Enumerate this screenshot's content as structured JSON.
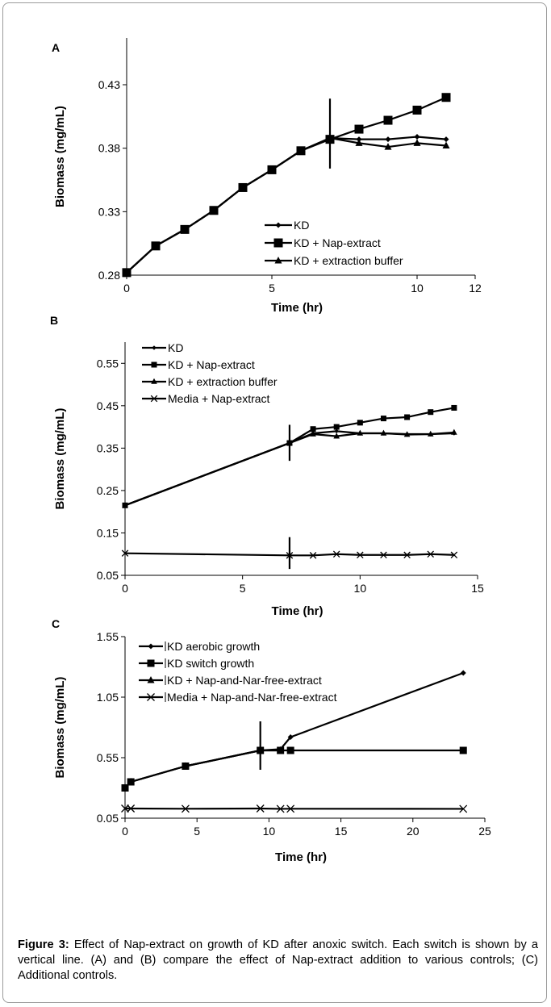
{
  "caption": {
    "label": "Figure 3:",
    "text": " Effect of Nap-extract on growth of KD after anoxic switch. Each switch is shown by a vertical line. (A) and (B) compare the effect of Nap-extract addition to various controls; (C) Additional controls."
  },
  "chart_data": [
    {
      "panel": "A",
      "type": "line",
      "xlabel": "Time (hr)",
      "ylabel": "Biomass (mg/mL)",
      "xlim": [
        0,
        12
      ],
      "ylim": [
        0.28,
        0.43
      ],
      "xticks": [
        0,
        5,
        10,
        12
      ],
      "yticks": [
        0.28,
        0.33,
        0.38,
        0.43
      ],
      "xtick_labels": [
        "0",
        "5",
        "10",
        "12"
      ],
      "ytick_labels": [
        "0.28",
        "0.33",
        "0.38",
        "0.43"
      ],
      "switch_x": 7,
      "switch_range": [
        0.364,
        0.419
      ],
      "legend_position": "bottom-right",
      "series": [
        {
          "name": "KD",
          "marker": "diamond",
          "x": [
            0,
            1,
            2,
            3,
            4,
            5,
            6,
            7,
            8,
            9,
            10,
            11
          ],
          "y": [
            0.282,
            0.303,
            0.316,
            0.331,
            0.349,
            0.363,
            0.378,
            0.388,
            0.387,
            0.387,
            0.389,
            0.387
          ]
        },
        {
          "name": "KD + Nap-extract",
          "marker": "square",
          "x": [
            0,
            1,
            2,
            3,
            4,
            5,
            6,
            7,
            8,
            9,
            10,
            11
          ],
          "y": [
            0.282,
            0.303,
            0.316,
            0.331,
            0.349,
            0.363,
            0.378,
            0.387,
            0.395,
            0.402,
            0.41,
            0.42
          ]
        },
        {
          "name": "KD + extraction buffer",
          "marker": "triangle",
          "x": [
            0,
            1,
            2,
            3,
            4,
            5,
            6,
            7,
            8,
            9,
            10,
            11
          ],
          "y": [
            0.282,
            0.303,
            0.316,
            0.331,
            0.349,
            0.363,
            0.378,
            0.388,
            0.384,
            0.381,
            0.384,
            0.382
          ]
        }
      ]
    },
    {
      "panel": "B",
      "type": "line",
      "xlabel": "Time (hr)",
      "ylabel": "Biomass (mg/mL)",
      "xlim": [
        0,
        15
      ],
      "ylim": [
        0.05,
        0.6
      ],
      "xticks": [
        0,
        5,
        10,
        15
      ],
      "yticks": [
        0.05,
        0.15,
        0.25,
        0.35,
        0.45,
        0.55
      ],
      "xtick_labels": [
        "0",
        "5",
        "10",
        "15"
      ],
      "ytick_labels": [
        "0.05",
        "0.15",
        "0.25",
        "0.35",
        "0.45",
        "0.55"
      ],
      "switch_x": 7,
      "switch_ranges": [
        [
          0.32,
          0.405
        ],
        [
          0.065,
          0.14
        ]
      ],
      "legend_position": "top-left",
      "series": [
        {
          "name": "KD",
          "marker": "diamond",
          "x": [
            0,
            7,
            8,
            9,
            10,
            11,
            12,
            13,
            14
          ],
          "y": [
            0.215,
            0.362,
            0.385,
            0.39,
            0.385,
            0.385,
            0.383,
            0.383,
            0.385
          ]
        },
        {
          "name": "KD + Nap-extract",
          "marker": "square",
          "x": [
            0,
            7,
            8,
            9,
            10,
            11,
            12,
            13,
            14
          ],
          "y": [
            0.215,
            0.362,
            0.395,
            0.4,
            0.41,
            0.42,
            0.423,
            0.435,
            0.445
          ]
        },
        {
          "name": "KD + extraction buffer",
          "marker": "triangle",
          "x": [
            0,
            7,
            8,
            9,
            10,
            11,
            12,
            13,
            14
          ],
          "y": [
            0.215,
            0.362,
            0.383,
            0.378,
            0.385,
            0.385,
            0.382,
            0.383,
            0.387
          ]
        },
        {
          "name": "Media + Nap-extract",
          "marker": "cross",
          "x": [
            0,
            7,
            8,
            9,
            10,
            11,
            12,
            13,
            14
          ],
          "y": [
            0.102,
            0.097,
            0.097,
            0.1,
            0.098,
            0.098,
            0.098,
            0.1,
            0.098
          ]
        }
      ]
    },
    {
      "panel": "C",
      "type": "line",
      "xlabel": "Time (hr)",
      "ylabel": "Biomass (mg/mL)",
      "xlim": [
        0,
        25
      ],
      "ylim": [
        0.05,
        1.55
      ],
      "xticks": [
        0,
        5,
        10,
        15,
        20,
        25
      ],
      "yticks": [
        0.05,
        0.55,
        1.05,
        1.55
      ],
      "xtick_labels": [
        "0",
        "5",
        "10",
        "15",
        "20",
        "25"
      ],
      "ytick_labels": [
        "0.05",
        "0.55",
        "1.05",
        "1.55"
      ],
      "switch_x": 9.4,
      "switch_range": [
        0.45,
        0.85
      ],
      "legend_position": "top-left",
      "series": [
        {
          "name": "KD aerobic growth",
          "marker": "diamond",
          "x": [
            0,
            0.4,
            4.2,
            9.4,
            10.8,
            11.5,
            23.5
          ],
          "y": [
            0.3,
            0.35,
            0.48,
            0.61,
            0.62,
            0.72,
            1.25
          ]
        },
        {
          "name": "KD switch growth",
          "marker": "square",
          "x": [
            0,
            0.4,
            4.2,
            9.4,
            10.8,
            11.5,
            23.5
          ],
          "y": [
            0.3,
            0.35,
            0.48,
            0.61,
            0.61,
            0.61,
            0.61
          ]
        },
        {
          "name": "KD + Nap-and-Nar-free-extract",
          "marker": "triangle",
          "x": [
            0,
            0.4,
            4.2,
            9.4,
            10.8
          ],
          "y": [
            0.3,
            0.35,
            0.48,
            0.61,
            0.61
          ]
        },
        {
          "name": "Media + Nap-and-Nar-free-extract",
          "marker": "cross",
          "x": [
            0,
            0.4,
            4.2,
            9.4,
            10.8,
            11.5,
            23.5
          ],
          "y": [
            0.13,
            0.13,
            0.128,
            0.13,
            0.127,
            0.128,
            0.127
          ]
        }
      ]
    }
  ]
}
